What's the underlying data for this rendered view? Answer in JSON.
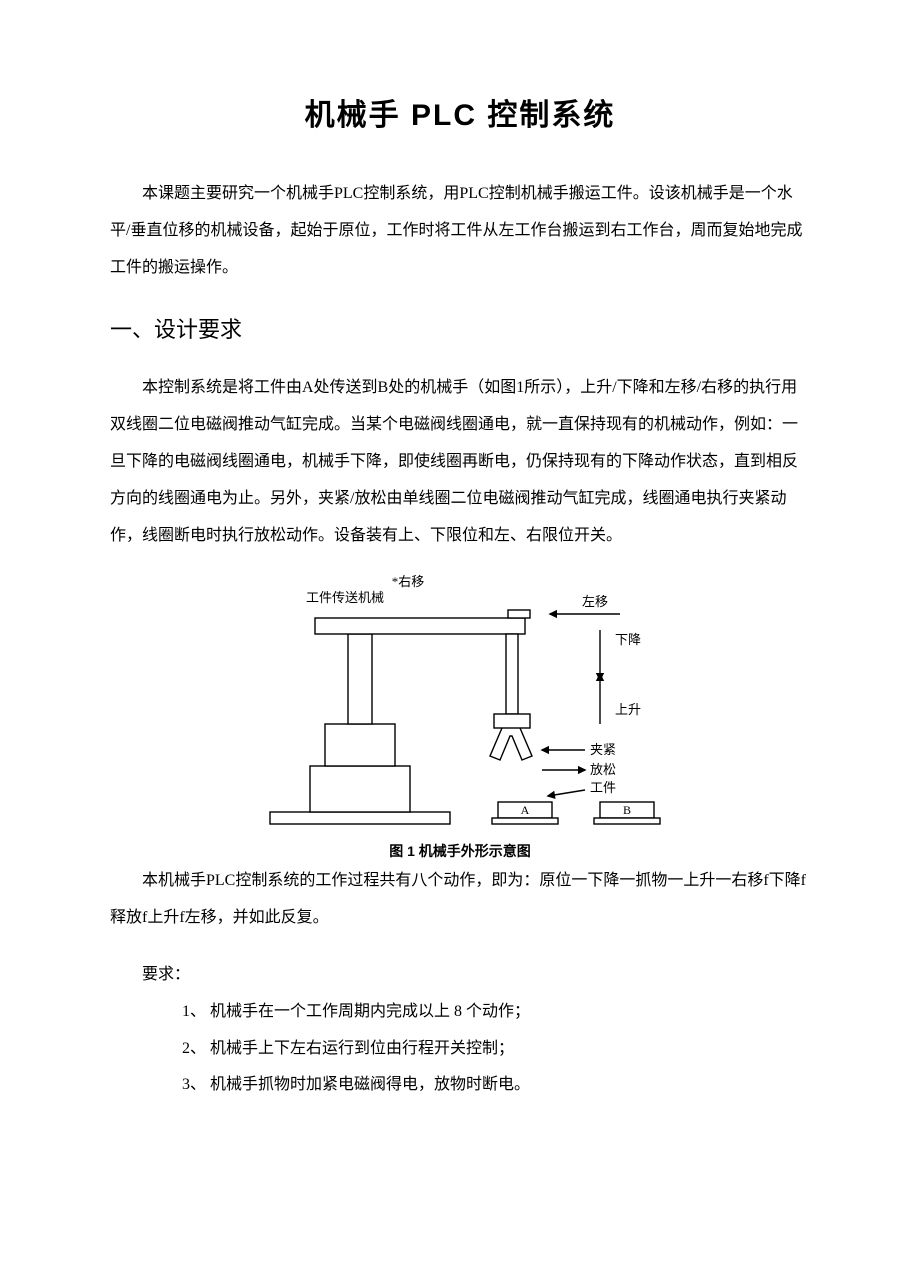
{
  "title": "机械手 PLC 控制系统",
  "intro": "本课题主要研究一个机械手PLC控制系统，用PLC控制机械手搬运工件。设该机械手是一个水平/垂直位移的机械设备，起始于原位，工作时将工件从左工作台搬运到右工作台，周而复始地完成工件的搬运操作。",
  "section1_heading": "一、设计要求",
  "section1_p1": "本控制系统是将工件由A处传送到B处的机械手（如图1所示），上升/下降和左移/右移的执行用双线圈二位电磁阀推动气缸完成。当某个电磁阀线圈通电，就一直保持现有的机械动作，例如：一旦下降的电磁阀线圈通电，机械手下降，即使线圈再断电，仍保持现有的下降动作状态，直到相反方向的线圈通电为止。另外，夹紧/放松由单线圈二位电磁阀推动气缸完成，线圈通电执行夹紧动作，线圈断电时执行放松动作。设备装有上、下限位和左、右限位开关。",
  "figure": {
    "caption": "图 1 机械手外形示意图",
    "labels": {
      "top_right_star": "*右移",
      "top_left": "工件传送机械",
      "left_move": "左移",
      "down": "下降",
      "up": "上升",
      "clamp": "夹紧",
      "release": "放松",
      "workpiece": "工件",
      "A": "A",
      "B": "B"
    },
    "colors": {
      "stroke": "#000000",
      "fill": "#ffffff",
      "text": "#000000"
    },
    "stroke_width": 1.4
  },
  "section1_p2": "本机械手PLC控制系统的工作过程共有八个动作，即为：原位一下降一抓物一上升一右移f下降f释放f上升f左移，并如此反复。",
  "req_label": "要求：",
  "requirements": [
    "1、 机械手在一个工作周期内完成以上 8 个动作；",
    "2、 机械手上下左右运行到位由行程开关控制；",
    "3、 机械手抓物时加紧电磁阀得电，放物时断电。"
  ]
}
